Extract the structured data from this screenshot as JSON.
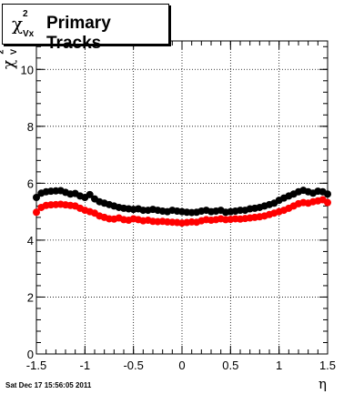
{
  "chart_data": {
    "type": "scatter",
    "title": "Primary Tracks",
    "title_symbol": "χ",
    "title_sup": "2",
    "title_sub": "Vx",
    "ylabel_symbol": "χ",
    "ylabel_sup": "2",
    "ylabel_sub": "V",
    "xlabel": "η",
    "xlim": [
      -1.5,
      1.5
    ],
    "ylim": [
      0,
      11
    ],
    "xticks": [
      "-1.5",
      "-1",
      "-0.5",
      "0",
      "0.5",
      "1",
      "1.5"
    ],
    "yticks": [
      "0",
      "2",
      "4",
      "6",
      "8",
      "10"
    ],
    "grid": true,
    "series": [
      {
        "color": "#000000",
        "x": [
          -1.5,
          -1.45,
          -1.4,
          -1.35,
          -1.3,
          -1.25,
          -1.2,
          -1.15,
          -1.1,
          -1.05,
          -1.0,
          -0.95,
          -0.9,
          -0.85,
          -0.8,
          -0.75,
          -0.7,
          -0.65,
          -0.6,
          -0.55,
          -0.5,
          -0.45,
          -0.4,
          -0.35,
          -0.3,
          -0.25,
          -0.2,
          -0.15,
          -0.1,
          -0.05,
          0.0,
          0.05,
          0.1,
          0.15,
          0.2,
          0.25,
          0.3,
          0.35,
          0.4,
          0.45,
          0.5,
          0.55,
          0.6,
          0.65,
          0.7,
          0.75,
          0.8,
          0.85,
          0.9,
          0.95,
          1.0,
          1.05,
          1.1,
          1.15,
          1.2,
          1.25,
          1.3,
          1.35,
          1.4,
          1.45,
          1.5
        ],
        "values": [
          5.5,
          5.65,
          5.7,
          5.72,
          5.73,
          5.74,
          5.68,
          5.62,
          5.64,
          5.55,
          5.5,
          5.6,
          5.45,
          5.35,
          5.3,
          5.25,
          5.2,
          5.15,
          5.12,
          5.1,
          5.08,
          5.1,
          5.05,
          5.05,
          5.08,
          5.05,
          5.02,
          5.0,
          5.05,
          5.02,
          5.0,
          4.98,
          4.97,
          4.98,
          5.02,
          5.05,
          5.0,
          5.02,
          5.05,
          4.98,
          5.0,
          5.02,
          5.05,
          5.05,
          5.1,
          5.12,
          5.15,
          5.2,
          5.25,
          5.3,
          5.4,
          5.48,
          5.55,
          5.62,
          5.7,
          5.75,
          5.7,
          5.65,
          5.72,
          5.7,
          5.62
        ]
      },
      {
        "color": "#ff0000",
        "x": [
          -1.5,
          -1.45,
          -1.4,
          -1.35,
          -1.3,
          -1.25,
          -1.2,
          -1.15,
          -1.1,
          -1.05,
          -1.0,
          -0.95,
          -0.9,
          -0.85,
          -0.8,
          -0.75,
          -0.7,
          -0.65,
          -0.6,
          -0.55,
          -0.5,
          -0.45,
          -0.4,
          -0.35,
          -0.3,
          -0.25,
          -0.2,
          -0.15,
          -0.1,
          -0.05,
          0.0,
          0.05,
          0.1,
          0.15,
          0.2,
          0.25,
          0.3,
          0.35,
          0.4,
          0.45,
          0.5,
          0.55,
          0.6,
          0.65,
          0.7,
          0.75,
          0.8,
          0.85,
          0.9,
          0.95,
          1.0,
          1.05,
          1.1,
          1.15,
          1.2,
          1.25,
          1.3,
          1.35,
          1.4,
          1.45,
          1.5
        ],
        "values": [
          4.98,
          5.15,
          5.22,
          5.24,
          5.25,
          5.26,
          5.24,
          5.22,
          5.2,
          5.12,
          5.05,
          5.0,
          4.95,
          4.85,
          4.8,
          4.75,
          4.74,
          4.78,
          4.72,
          4.7,
          4.75,
          4.72,
          4.68,
          4.7,
          4.66,
          4.65,
          4.66,
          4.64,
          4.63,
          4.62,
          4.6,
          4.62,
          4.64,
          4.63,
          4.68,
          4.72,
          4.7,
          4.72,
          4.75,
          4.72,
          4.73,
          4.75,
          4.74,
          4.76,
          4.78,
          4.8,
          4.82,
          4.85,
          4.9,
          4.95,
          5.0,
          5.05,
          5.12,
          5.2,
          5.28,
          5.32,
          5.3,
          5.35,
          5.38,
          5.42,
          5.32
        ]
      }
    ]
  },
  "footer_text": "Sat Dec 17 15:56:05 2011"
}
